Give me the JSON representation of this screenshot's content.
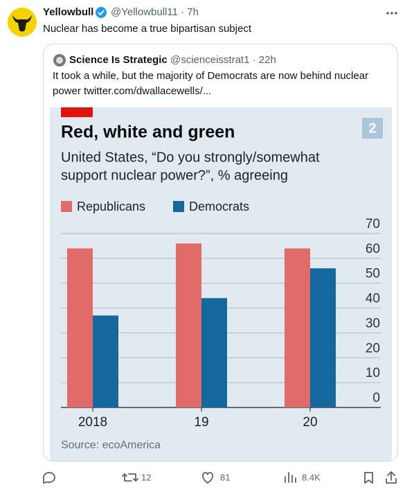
{
  "tweet": {
    "name": "Yellowbull",
    "handle": "@Yellowbull11 · 7h",
    "text": "Nuclear has become a true bipartisan subject",
    "quote": {
      "name": "Science Is Strategic",
      "handle": "@scienceisstrat1 · 22h",
      "text_lines": [
        "It took a while, but the majority of Democrats are now behind nuclear",
        "power  twitter.com/dwallacewells/..."
      ]
    },
    "stats": {
      "retweets": "12",
      "likes": "81",
      "views": "8.4K"
    }
  },
  "chart_data": {
    "type": "bar",
    "title": "Red, white and green",
    "subtitle_lines": [
      "United States, “Do you strongly/somewhat",
      "support nuclear power?”, % agreeing"
    ],
    "badge": "2",
    "categories": [
      "2018",
      "19",
      "20"
    ],
    "series": [
      {
        "name": "Republicans",
        "color": "#e06b68",
        "values": [
          64,
          66,
          64
        ]
      },
      {
        "name": "Democrats",
        "color": "#14689d",
        "values": [
          37,
          44,
          56
        ]
      }
    ],
    "ylim": [
      0,
      70
    ],
    "yticks": [
      0,
      10,
      20,
      30,
      40,
      50,
      60,
      70
    ],
    "grid": true,
    "source": "Source: ecoAmerica"
  }
}
